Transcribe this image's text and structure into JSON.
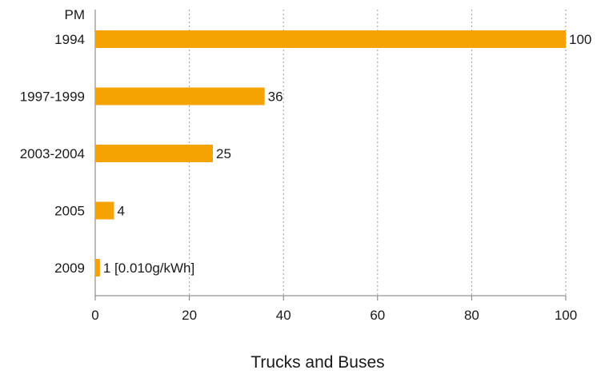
{
  "chart_data": {
    "type": "bar",
    "orientation": "horizontal",
    "panel_label": "PM",
    "categories": [
      "1994",
      "1997-1999",
      "2003-2004",
      "2005",
      "2009"
    ],
    "values": [
      100,
      36,
      25,
      4,
      1
    ],
    "data_labels": [
      "100",
      "36",
      "25",
      "4",
      "1 [0.010g/kWh]"
    ],
    "xlabel": "Trucks and Buses",
    "ylabel": "",
    "xlim": [
      0,
      100
    ],
    "xticks": [
      0,
      20,
      40,
      60,
      80,
      100
    ],
    "xtick_labels": [
      "0",
      "20",
      "40",
      "60",
      "80",
      "100"
    ],
    "grid": "vertical-dotted",
    "bar_color": "#f5a300"
  }
}
